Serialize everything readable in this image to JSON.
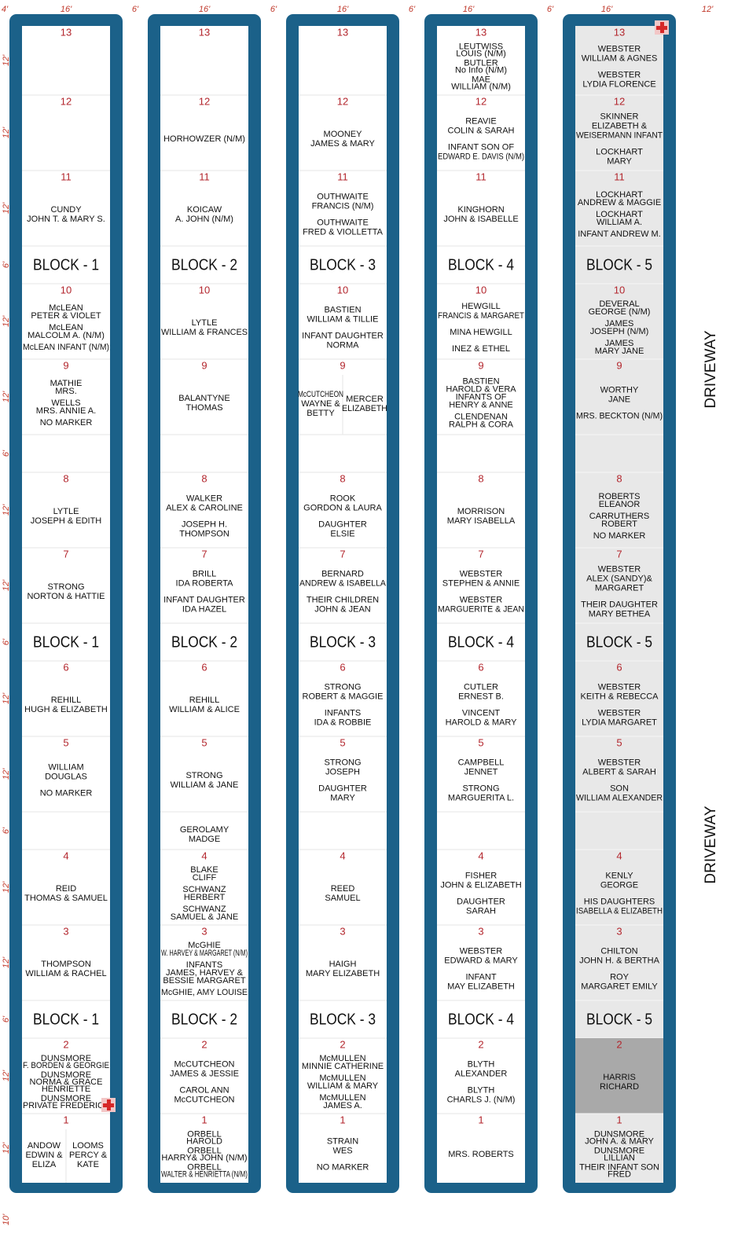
{
  "top_dimensions": [
    "4'",
    "16'",
    "6'",
    "16'",
    "6'",
    "16'",
    "6'",
    "16'",
    "6'",
    "16'",
    "12'"
  ],
  "left_dimensions": [
    "12'",
    "12'",
    "12'",
    "6'",
    "12'",
    "12'",
    "6'",
    "12'",
    "12'",
    "6'",
    "12'",
    "12'",
    "6'",
    "12'",
    "12'",
    "6'",
    "12'",
    "12'"
  ],
  "bottom_dimension": "10'",
  "driveway": [
    "DRIVEWAY",
    "DRIVEWAY"
  ],
  "blocks": [
    {
      "label": "BLOCK - 1",
      "gaps": [
        {
          "entries": []
        },
        {
          "entries": []
        }
      ],
      "plots": [
        {
          "number": 13,
          "entries": []
        },
        {
          "number": 12,
          "entries": []
        },
        {
          "number": 11,
          "entries": [
            [
              "CUNDY",
              "JOHN T. & MARY S."
            ]
          ]
        },
        {
          "number": 10,
          "entries": [
            [
              "McLEAN",
              "PETER & VIOLET"
            ],
            [
              "McLEAN",
              "MALCOLM A. (N/M)"
            ],
            [
              "McLEAN INFANT (N/M)"
            ]
          ]
        },
        {
          "number": 9,
          "entries": [
            [
              "MATHIE",
              "MRS."
            ],
            [
              "WELLS",
              "MRS. ANNIE A."
            ],
            [
              "NO MARKER"
            ]
          ]
        },
        {
          "number": 8,
          "entries": [
            [
              "LYTLE",
              "JOSEPH & EDITH"
            ]
          ]
        },
        {
          "number": 7,
          "entries": [
            [
              "STRONG",
              "NORTON & HATTIE"
            ]
          ]
        },
        {
          "number": 6,
          "entries": [
            [
              "REHILL",
              "HUGH & ELIZABETH"
            ]
          ]
        },
        {
          "number": 5,
          "entries": [
            [
              "WILLIAM",
              "DOUGLAS"
            ],
            [
              "NO MARKER"
            ]
          ]
        },
        {
          "number": 4,
          "entries": [
            [
              "REID",
              "THOMAS & SAMUEL"
            ]
          ]
        },
        {
          "number": 3,
          "entries": [
            [
              "THOMPSON",
              "WILLIAM & RACHEL"
            ]
          ]
        },
        {
          "number": 2,
          "entries": [
            [
              "DUNSMORE",
              "F. BORDEN & GEORGIE"
            ],
            [
              "DUNSMORE",
              "NORMA & GRACE",
              "HENRIETTE"
            ],
            [
              "DUNSMORE",
              "PRIVATE FREDERICK"
            ]
          ]
        },
        {
          "number": 1,
          "sides": [
            [
              [
                "ANDOW",
                "EDWIN &",
                "ELIZA"
              ]
            ],
            [
              [
                "LOOMS",
                "PERCY &",
                "KATE"
              ]
            ]
          ]
        }
      ]
    },
    {
      "label": "BLOCK - 2",
      "gaps": [
        {
          "entries": []
        },
        {
          "entries": [
            [
              "GEROLAMY",
              "MADGE"
            ]
          ]
        }
      ],
      "plots": [
        {
          "number": 13,
          "entries": []
        },
        {
          "number": 12,
          "entries": [
            [
              "HORHOWZER (N/M)"
            ]
          ]
        },
        {
          "number": 11,
          "entries": [
            [
              "KOICAW",
              "A. JOHN (N/M)"
            ]
          ]
        },
        {
          "number": 10,
          "entries": [
            [
              "LYTLE",
              "WILLIAM & FRANCES"
            ]
          ]
        },
        {
          "number": 9,
          "entries": [
            [
              "BALANTYNE",
              "THOMAS"
            ]
          ]
        },
        {
          "number": 8,
          "entries": [
            [
              "WALKER",
              "ALEX & CAROLINE"
            ],
            [
              "JOSEPH H.",
              "THOMPSON"
            ]
          ]
        },
        {
          "number": 7,
          "entries": [
            [
              "BRILL",
              "IDA ROBERTA"
            ],
            [
              "INFANT DAUGHTER",
              "IDA HAZEL"
            ]
          ]
        },
        {
          "number": 6,
          "entries": [
            [
              "REHILL",
              "WILLIAM & ALICE"
            ]
          ]
        },
        {
          "number": 5,
          "entries": [
            [
              "STRONG",
              "WILLIAM & JANE"
            ]
          ]
        },
        {
          "number": 4,
          "entries": [
            [
              "BLAKE",
              "CLIFF"
            ],
            [
              "SCHWANZ",
              "HERBERT"
            ],
            [
              "SCHWANZ",
              "SAMUEL & JANE"
            ]
          ]
        },
        {
          "number": 3,
          "entries": [
            [
              "McGHIE",
              "W. HARVEY & MARGARET (N/M)"
            ],
            [
              "INFANTS",
              "JAMES, HARVEY &",
              "BESSIE MARGARET"
            ],
            [
              "McGHIE, AMY LOUISE"
            ]
          ]
        },
        {
          "number": 2,
          "entries": [
            [
              "McCUTCHEON",
              "JAMES & JESSIE"
            ],
            [
              "CAROL ANN",
              "McCUTCHEON"
            ]
          ]
        },
        {
          "number": 1,
          "entries": [
            [
              "ORBELL",
              "HAROLD"
            ],
            [
              "ORBELL",
              "HARRY& JOHN (N/M)"
            ],
            [
              "ORBELL",
              "WALTER & HENRIETTA (N/M)"
            ]
          ]
        }
      ]
    },
    {
      "label": "BLOCK - 3",
      "gaps": [
        {
          "entries": []
        },
        {
          "entries": []
        }
      ],
      "plots": [
        {
          "number": 13,
          "entries": []
        },
        {
          "number": 12,
          "entries": [
            [
              "MOONEY",
              "JAMES & MARY"
            ]
          ]
        },
        {
          "number": 11,
          "entries": [
            [
              "OUTHWAITE",
              "FRANCIS (N/M)"
            ],
            [
              "OUTHWAITE",
              "FRED & VIOLLETTA"
            ]
          ]
        },
        {
          "number": 10,
          "entries": [
            [
              "BASTIEN",
              "WILLIAM & TILLIE"
            ],
            [
              "INFANT DAUGHTER",
              "NORMA"
            ]
          ]
        },
        {
          "number": 9,
          "sides": [
            [
              [
                "McCUTCHEON",
                "WAYNE &",
                "BETTY"
              ]
            ],
            [
              [
                "MERCER",
                "ELIZABETH"
              ]
            ]
          ]
        },
        {
          "number": 8,
          "entries": [
            [
              "ROOK",
              "GORDON & LAURA"
            ],
            [
              "DAUGHTER",
              "ELSIE"
            ]
          ]
        },
        {
          "number": 7,
          "entries": [
            [
              "BERNARD",
              "ANDREW & ISABELLA"
            ],
            [
              "THEIR CHILDREN",
              "JOHN & JEAN"
            ]
          ]
        },
        {
          "number": 6,
          "entries": [
            [
              "STRONG",
              "ROBERT & MAGGIE"
            ],
            [
              "INFANTS",
              "IDA & ROBBIE"
            ]
          ]
        },
        {
          "number": 5,
          "entries": [
            [
              "STRONG",
              "JOSEPH"
            ],
            [
              "DAUGHTER",
              "MARY"
            ]
          ]
        },
        {
          "number": 4,
          "entries": [
            [
              "REED",
              "SAMUEL"
            ]
          ]
        },
        {
          "number": 3,
          "entries": [
            [
              "HAIGH",
              "MARY ELIZABETH"
            ]
          ]
        },
        {
          "number": 2,
          "entries": [
            [
              "McMULLEN",
              "MINNIE CATHERINE"
            ],
            [
              "McMULLEN",
              "WILLIAM & MARY"
            ],
            [
              "McMULLEN",
              "JAMES A."
            ]
          ]
        },
        {
          "number": 1,
          "entries": [
            [
              "STRAIN",
              "WES"
            ],
            [
              "NO MARKER"
            ]
          ]
        }
      ]
    },
    {
      "label": "BLOCK - 4",
      "gaps": [
        {
          "entries": []
        },
        {
          "entries": []
        }
      ],
      "plots": [
        {
          "number": 13,
          "entries": [
            [
              "LEUTWISS",
              "LOUIS (N/M)"
            ],
            [
              "BUTLER",
              "No Info (N/M)"
            ],
            [
              "MAE",
              "WILLIAM (N/M)"
            ]
          ]
        },
        {
          "number": 12,
          "entries": [
            [
              "REAVIE",
              "COLIN & SARAH"
            ],
            [
              "INFANT SON OF",
              "EDWARD E. DAVIS (N/M)"
            ]
          ]
        },
        {
          "number": 11,
          "entries": [
            [
              "KINGHORN",
              "JOHN & ISABELLE"
            ]
          ]
        },
        {
          "number": 10,
          "entries": [
            [
              "HEWGILL",
              "FRANCIS & MARGARET"
            ],
            [
              "MINA HEWGILL"
            ],
            [
              "INEZ & ETHEL"
            ]
          ]
        },
        {
          "number": 9,
          "entries": [
            [
              "BASTIEN",
              "HAROLD & VERA",
              "INFANTS OF",
              "HENRY & ANNE"
            ],
            [
              "CLENDENAN",
              "RALPH & CORA"
            ]
          ]
        },
        {
          "number": 8,
          "entries": [
            [
              "MORRISON",
              "MARY ISABELLA"
            ]
          ]
        },
        {
          "number": 7,
          "entries": [
            [
              "WEBSTER",
              "STEPHEN & ANNIE"
            ],
            [
              "WEBSTER",
              "MARGUERITE & JEAN"
            ]
          ]
        },
        {
          "number": 6,
          "entries": [
            [
              "CUTLER",
              "ERNEST B."
            ],
            [
              "VINCENT",
              "HAROLD & MARY"
            ]
          ]
        },
        {
          "number": 5,
          "entries": [
            [
              "CAMPBELL",
              "JENNET"
            ],
            [
              "STRONG",
              "MARGUERITA L."
            ]
          ]
        },
        {
          "number": 4,
          "entries": [
            [
              "FISHER",
              "JOHN & ELIZABETH"
            ],
            [
              "DAUGHTER",
              "SARAH"
            ]
          ]
        },
        {
          "number": 3,
          "entries": [
            [
              "WEBSTER",
              "EDWARD & MARY"
            ],
            [
              "INFANT",
              "MAY ELIZABETH"
            ]
          ]
        },
        {
          "number": 2,
          "entries": [
            [
              "BLYTH",
              "ALEXANDER"
            ],
            [
              "BLYTH",
              "CHARLS J. (N/M)"
            ]
          ]
        },
        {
          "number": 1,
          "entries": [
            [
              "MRS. ROBERTS"
            ]
          ]
        }
      ]
    },
    {
      "label": "BLOCK - 5",
      "gaps": [
        {
          "entries": []
        },
        {
          "entries": []
        }
      ],
      "plots": [
        {
          "number": 13,
          "entries": [
            [
              "WEBSTER",
              "WILLIAM & AGNES"
            ],
            [
              "WEBSTER",
              "LYDIA FLORENCE"
            ]
          ]
        },
        {
          "number": 12,
          "entries": [
            [
              "SKINNER",
              "ELIZABETH &",
              "WEISERMANN INFANT"
            ],
            [
              "LOCKHART",
              "MARY"
            ]
          ]
        },
        {
          "number": 11,
          "entries": [
            [
              "LOCKHART",
              "ANDREW & MAGGIE"
            ],
            [
              "LOCKHART",
              "WILLIAM A."
            ],
            [
              "INFANT ANDREW M."
            ]
          ]
        },
        {
          "number": 10,
          "entries": [
            [
              "DEVERAL",
              "GEORGE (N/M)"
            ],
            [
              "JAMES",
              "JOSEPH (N/M)"
            ],
            [
              "JAMES",
              "MARY JANE"
            ]
          ]
        },
        {
          "number": 9,
          "entries": [
            [
              "WORTHY",
              "JANE"
            ],
            [
              "MRS. BECKTON (N/M)"
            ]
          ]
        },
        {
          "number": 8,
          "entries": [
            [
              "ROBERTS",
              "ELEANOR"
            ],
            [
              "CARRUTHERS",
              "ROBERT"
            ],
            [
              "NO MARKER"
            ]
          ]
        },
        {
          "number": 7,
          "entries": [
            [
              "WEBSTER",
              "ALEX (SANDY)&",
              "MARGARET"
            ],
            [
              "THEIR DAUGHTER",
              "MARY BETHEA"
            ]
          ]
        },
        {
          "number": 6,
          "entries": [
            [
              "WEBSTER",
              "KEITH & REBECCA"
            ],
            [
              "WEBSTER",
              "LYDIA MARGARET"
            ]
          ]
        },
        {
          "number": 5,
          "entries": [
            [
              "WEBSTER",
              "ALBERT & SARAH"
            ],
            [
              "SON",
              "WILLIAM ALEXANDER"
            ]
          ]
        },
        {
          "number": 4,
          "entries": [
            [
              "KENLY",
              "GEORGE"
            ],
            [
              "HIS DAUGHTERS",
              "ISABELLA & ELIZABETH"
            ]
          ]
        },
        {
          "number": 3,
          "entries": [
            [
              "CHILTON",
              "JOHN H. & BERTHA"
            ],
            [
              "ROY",
              "MARGARET EMILY"
            ]
          ]
        },
        {
          "number": 2,
          "entries": [
            [
              "HARRIS",
              "RICHARD"
            ]
          ]
        },
        {
          "number": 1,
          "entries": [
            [
              "DUNSMORE",
              "JOHN A. & MARY"
            ],
            [
              "DUNSMORE",
              "LILLIAN"
            ],
            [
              "THEIR INFANT SON",
              "FRED"
            ]
          ]
        }
      ]
    }
  ]
}
